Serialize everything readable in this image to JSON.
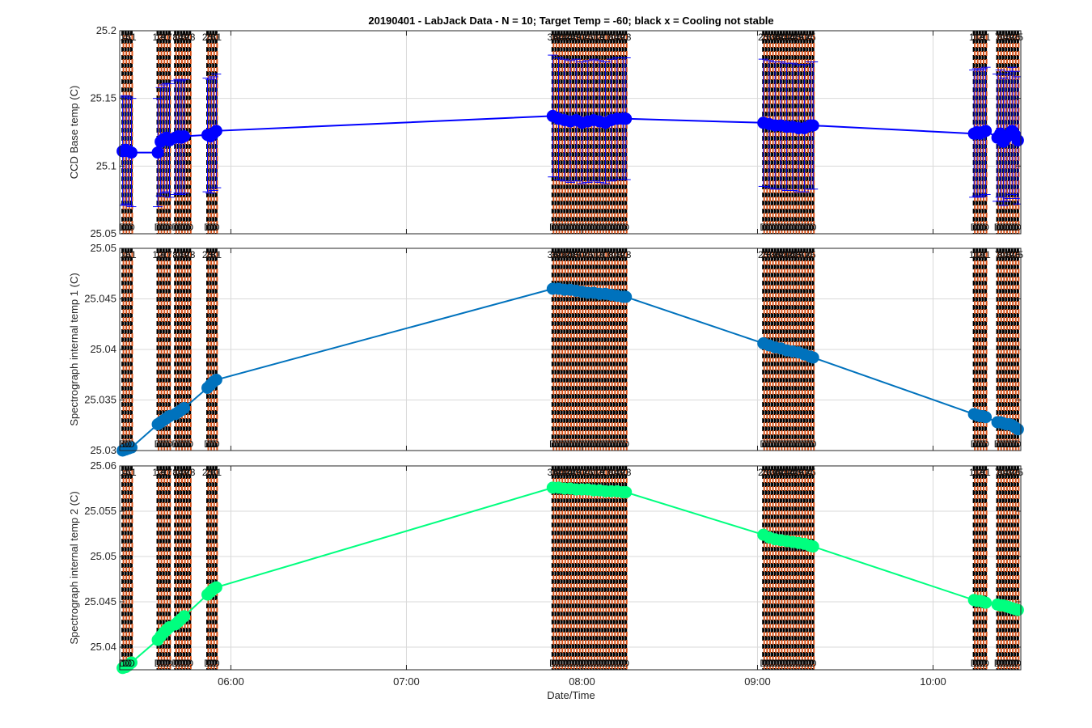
{
  "chart_data": {
    "type": "line",
    "title": "20190401 - LabJack Data - N = 10; Target Temp = -60; black x = Cooling not stable",
    "xlabel": "Date/Time",
    "x_range": [
      "05:22",
      "10:30"
    ],
    "x_ticks": [
      "06:00",
      "07:00",
      "08:00",
      "09:00",
      "10:00"
    ],
    "grid": true,
    "marker_times": [
      "05:23",
      "05:24",
      "05:25",
      "05:26",
      "05:35",
      "05:36",
      "05:37",
      "05:38",
      "05:39",
      "05:41",
      "05:42",
      "05:43",
      "05:44",
      "05:45",
      "05:46",
      "05:52",
      "05:53",
      "05:54",
      "05:55",
      "07:50",
      "07:51",
      "07:52",
      "07:53",
      "07:54",
      "07:55",
      "07:56",
      "07:57",
      "07:58",
      "07:59",
      "08:00",
      "08:01",
      "08:02",
      "08:03",
      "08:04",
      "08:05",
      "08:06",
      "08:07",
      "08:08",
      "08:09",
      "08:10",
      "08:11",
      "08:12",
      "08:13",
      "08:14",
      "08:15",
      "09:02",
      "09:03",
      "09:04",
      "09:05",
      "09:06",
      "09:07",
      "09:08",
      "09:09",
      "09:10",
      "09:11",
      "09:12",
      "09:13",
      "09:14",
      "09:15",
      "09:16",
      "09:17",
      "09:18",
      "09:19",
      "10:14",
      "10:15",
      "10:16",
      "10:17",
      "10:18",
      "10:22",
      "10:23",
      "10:24",
      "10:25",
      "10:26",
      "10:27",
      "10:28",
      "10:29"
    ],
    "marker_top_labels": [
      "1",
      "4",
      "5",
      "11",
      "12",
      "16",
      "9",
      "11",
      "7",
      "8",
      "14",
      "15",
      "19",
      "20",
      "23",
      "25",
      "28",
      "30",
      "31",
      "38",
      "39",
      "40",
      "41",
      "42",
      "44",
      "47",
      "48",
      "49",
      "50",
      "52"
    ],
    "marker_bottom_label": "D",
    "panels": [
      {
        "ylabel": "CCD Base temp (C)",
        "y_ticks": [
          "25.05",
          "25.1",
          "25.15",
          "25.2"
        ],
        "ylim": [
          25.05,
          25.2
        ],
        "color": "#0000ff",
        "errorbar_color": "#0000ff",
        "series": [
          {
            "x": "05:23",
            "y": 25.111,
            "err": 0.04
          },
          {
            "x": "05:24",
            "y": 25.112,
            "err": 0.04
          },
          {
            "x": "05:25",
            "y": 25.111,
            "err": 0.04
          },
          {
            "x": "05:26",
            "y": 25.11,
            "err": 0.04
          },
          {
            "x": "05:35",
            "y": 25.11,
            "err": 0.04
          },
          {
            "x": "05:36",
            "y": 25.118,
            "err": 0.04
          },
          {
            "x": "05:37",
            "y": 25.12,
            "err": 0.04
          },
          {
            "x": "05:38",
            "y": 25.121,
            "err": 0.04
          },
          {
            "x": "05:39",
            "y": 25.119,
            "err": 0.042
          },
          {
            "x": "05:41",
            "y": 25.121,
            "err": 0.042
          },
          {
            "x": "05:42",
            "y": 25.122,
            "err": 0.042
          },
          {
            "x": "05:43",
            "y": 25.121,
            "err": 0.042
          },
          {
            "x": "05:44",
            "y": 25.122,
            "err": 0.042
          },
          {
            "x": "05:52",
            "y": 25.123,
            "err": 0.042
          },
          {
            "x": "05:53",
            "y": 25.122,
            "err": 0.042
          },
          {
            "x": "05:54",
            "y": 25.124,
            "err": 0.042
          },
          {
            "x": "05:55",
            "y": 25.126,
            "err": 0.042
          },
          {
            "x": "07:50",
            "y": 25.137,
            "err": 0.045
          },
          {
            "x": "07:52",
            "y": 25.135,
            "err": 0.045
          },
          {
            "x": "07:54",
            "y": 25.134,
            "err": 0.045
          },
          {
            "x": "07:56",
            "y": 25.133,
            "err": 0.045
          },
          {
            "x": "07:58",
            "y": 25.134,
            "err": 0.045
          },
          {
            "x": "08:00",
            "y": 25.132,
            "err": 0.045
          },
          {
            "x": "08:02",
            "y": 25.133,
            "err": 0.045
          },
          {
            "x": "08:04",
            "y": 25.134,
            "err": 0.045
          },
          {
            "x": "08:06",
            "y": 25.133,
            "err": 0.045
          },
          {
            "x": "08:08",
            "y": 25.132,
            "err": 0.045
          },
          {
            "x": "08:10",
            "y": 25.134,
            "err": 0.045
          },
          {
            "x": "08:12",
            "y": 25.135,
            "err": 0.045
          },
          {
            "x": "08:14",
            "y": 25.135,
            "err": 0.045
          },
          {
            "x": "08:15",
            "y": 25.135,
            "err": 0.045
          },
          {
            "x": "09:02",
            "y": 25.132,
            "err": 0.047
          },
          {
            "x": "09:04",
            "y": 25.131,
            "err": 0.047
          },
          {
            "x": "09:06",
            "y": 25.13,
            "err": 0.047
          },
          {
            "x": "09:08",
            "y": 25.13,
            "err": 0.047
          },
          {
            "x": "09:10",
            "y": 25.129,
            "err": 0.047
          },
          {
            "x": "09:12",
            "y": 25.129,
            "err": 0.047
          },
          {
            "x": "09:14",
            "y": 25.128,
            "err": 0.047
          },
          {
            "x": "09:16",
            "y": 25.128,
            "err": 0.047
          },
          {
            "x": "09:18",
            "y": 25.13,
            "err": 0.047
          },
          {
            "x": "09:19",
            "y": 25.13,
            "err": 0.047
          },
          {
            "x": "10:14",
            "y": 25.124,
            "err": 0.047
          },
          {
            "x": "10:15",
            "y": 25.125,
            "err": 0.047
          },
          {
            "x": "10:16",
            "y": 25.124,
            "err": 0.047
          },
          {
            "x": "10:17",
            "y": 25.125,
            "err": 0.047
          },
          {
            "x": "10:18",
            "y": 25.126,
            "err": 0.047
          },
          {
            "x": "10:22",
            "y": 25.121,
            "err": 0.047
          },
          {
            "x": "10:23",
            "y": 25.124,
            "err": 0.047
          },
          {
            "x": "10:24",
            "y": 25.118,
            "err": 0.047
          },
          {
            "x": "10:25",
            "y": 25.121,
            "err": 0.047
          },
          {
            "x": "10:26",
            "y": 25.123,
            "err": 0.047
          },
          {
            "x": "10:27",
            "y": 25.126,
            "err": 0.047
          },
          {
            "x": "10:28",
            "y": 25.123,
            "err": 0.047
          },
          {
            "x": "10:29",
            "y": 25.119,
            "err": 0.047
          }
        ]
      },
      {
        "ylabel": "Spectrograph internal temp 1 (C)",
        "y_ticks": [
          "25.03",
          "25.035",
          "25.04",
          "25.045",
          "25.05"
        ],
        "ylim": [
          25.03,
          25.05
        ],
        "color": "#0072bd",
        "series": [
          {
            "x": "05:23",
            "y": 25.03
          },
          {
            "x": "05:24",
            "y": 25.0301
          },
          {
            "x": "05:25",
            "y": 25.0302
          },
          {
            "x": "05:26",
            "y": 25.0303
          },
          {
            "x": "05:35",
            "y": 25.0326
          },
          {
            "x": "05:36",
            "y": 25.0328
          },
          {
            "x": "05:37",
            "y": 25.033
          },
          {
            "x": "05:38",
            "y": 25.0332
          },
          {
            "x": "05:39",
            "y": 25.0334
          },
          {
            "x": "05:41",
            "y": 25.0336
          },
          {
            "x": "05:42",
            "y": 25.0338
          },
          {
            "x": "05:43",
            "y": 25.034
          },
          {
            "x": "05:44",
            "y": 25.0342
          },
          {
            "x": "05:52",
            "y": 25.0362
          },
          {
            "x": "05:53",
            "y": 25.0365
          },
          {
            "x": "05:54",
            "y": 25.0368
          },
          {
            "x": "05:55",
            "y": 25.037
          },
          {
            "x": "07:50",
            "y": 25.046
          },
          {
            "x": "07:52",
            "y": 25.046
          },
          {
            "x": "07:54",
            "y": 25.0459
          },
          {
            "x": "07:56",
            "y": 25.0459
          },
          {
            "x": "07:58",
            "y": 25.0458
          },
          {
            "x": "08:00",
            "y": 25.0457
          },
          {
            "x": "08:02",
            "y": 25.0456
          },
          {
            "x": "08:04",
            "y": 25.0456
          },
          {
            "x": "08:06",
            "y": 25.0455
          },
          {
            "x": "08:08",
            "y": 25.0455
          },
          {
            "x": "08:10",
            "y": 25.0454
          },
          {
            "x": "08:12",
            "y": 25.0453
          },
          {
            "x": "08:14",
            "y": 25.0452
          },
          {
            "x": "08:15",
            "y": 25.0452
          },
          {
            "x": "09:02",
            "y": 25.0406
          },
          {
            "x": "09:04",
            "y": 25.0404
          },
          {
            "x": "09:06",
            "y": 25.0402
          },
          {
            "x": "09:08",
            "y": 25.0401
          },
          {
            "x": "09:10",
            "y": 25.0399
          },
          {
            "x": "09:12",
            "y": 25.0398
          },
          {
            "x": "09:14",
            "y": 25.0397
          },
          {
            "x": "09:16",
            "y": 25.0395
          },
          {
            "x": "09:18",
            "y": 25.0393
          },
          {
            "x": "09:19",
            "y": 25.0392
          },
          {
            "x": "10:14",
            "y": 25.0336
          },
          {
            "x": "10:15",
            "y": 25.0335
          },
          {
            "x": "10:16",
            "y": 25.0334
          },
          {
            "x": "10:17",
            "y": 25.0334
          },
          {
            "x": "10:18",
            "y": 25.0333
          },
          {
            "x": "10:22",
            "y": 25.0328
          },
          {
            "x": "10:23",
            "y": 25.0328
          },
          {
            "x": "10:24",
            "y": 25.0327
          },
          {
            "x": "10:25",
            "y": 25.0326
          },
          {
            "x": "10:26",
            "y": 25.0326
          },
          {
            "x": "10:27",
            "y": 25.0325
          },
          {
            "x": "10:28",
            "y": 25.0323
          },
          {
            "x": "10:29",
            "y": 25.0321
          }
        ]
      },
      {
        "ylabel": "Spectrograph internal temp 2 (C)",
        "y_ticks": [
          "25.04",
          "25.045",
          "25.05",
          "25.055",
          "25.06"
        ],
        "ylim": [
          25.0375,
          25.06
        ],
        "color": "#00ff7f",
        "series": [
          {
            "x": "05:23",
            "y": 25.0377
          },
          {
            "x": "05:24",
            "y": 25.0378
          },
          {
            "x": "05:25",
            "y": 25.038
          },
          {
            "x": "05:26",
            "y": 25.0383
          },
          {
            "x": "05:35",
            "y": 25.0408
          },
          {
            "x": "05:36",
            "y": 25.0412
          },
          {
            "x": "05:37",
            "y": 25.0416
          },
          {
            "x": "05:38",
            "y": 25.0419
          },
          {
            "x": "05:39",
            "y": 25.0422
          },
          {
            "x": "05:41",
            "y": 25.0425
          },
          {
            "x": "05:42",
            "y": 25.0428
          },
          {
            "x": "05:43",
            "y": 25.0431
          },
          {
            "x": "05:44",
            "y": 25.0434
          },
          {
            "x": "05:52",
            "y": 25.0458
          },
          {
            "x": "05:53",
            "y": 25.0461
          },
          {
            "x": "05:54",
            "y": 25.0464
          },
          {
            "x": "05:55",
            "y": 25.0466
          },
          {
            "x": "07:50",
            "y": 25.0576
          },
          {
            "x": "07:52",
            "y": 25.0576
          },
          {
            "x": "07:54",
            "y": 25.0575
          },
          {
            "x": "07:56",
            "y": 25.0575
          },
          {
            "x": "07:58",
            "y": 25.0574
          },
          {
            "x": "08:00",
            "y": 25.0574
          },
          {
            "x": "08:02",
            "y": 25.0574
          },
          {
            "x": "08:04",
            "y": 25.0573
          },
          {
            "x": "08:06",
            "y": 25.0573
          },
          {
            "x": "08:08",
            "y": 25.0572
          },
          {
            "x": "08:10",
            "y": 25.0572
          },
          {
            "x": "08:12",
            "y": 25.0572
          },
          {
            "x": "08:14",
            "y": 25.0571
          },
          {
            "x": "08:15",
            "y": 25.0571
          },
          {
            "x": "09:02",
            "y": 25.0524
          },
          {
            "x": "09:04",
            "y": 25.0521
          },
          {
            "x": "09:06",
            "y": 25.0519
          },
          {
            "x": "09:08",
            "y": 25.0518
          },
          {
            "x": "09:10",
            "y": 25.0517
          },
          {
            "x": "09:12",
            "y": 25.0516
          },
          {
            "x": "09:14",
            "y": 25.0515
          },
          {
            "x": "09:16",
            "y": 25.0514
          },
          {
            "x": "09:18",
            "y": 25.0512
          },
          {
            "x": "09:19",
            "y": 25.0511
          },
          {
            "x": "10:14",
            "y": 25.0452
          },
          {
            "x": "10:15",
            "y": 25.0451
          },
          {
            "x": "10:16",
            "y": 25.0451
          },
          {
            "x": "10:17",
            "y": 25.045
          },
          {
            "x": "10:18",
            "y": 25.0449
          },
          {
            "x": "10:22",
            "y": 25.0447
          },
          {
            "x": "10:23",
            "y": 25.0446
          },
          {
            "x": "10:24",
            "y": 25.0446
          },
          {
            "x": "10:25",
            "y": 25.0445
          },
          {
            "x": "10:26",
            "y": 25.0444
          },
          {
            "x": "10:27",
            "y": 25.0443
          },
          {
            "x": "10:28",
            "y": 25.0442
          },
          {
            "x": "10:29",
            "y": 25.0441
          }
        ]
      }
    ]
  }
}
